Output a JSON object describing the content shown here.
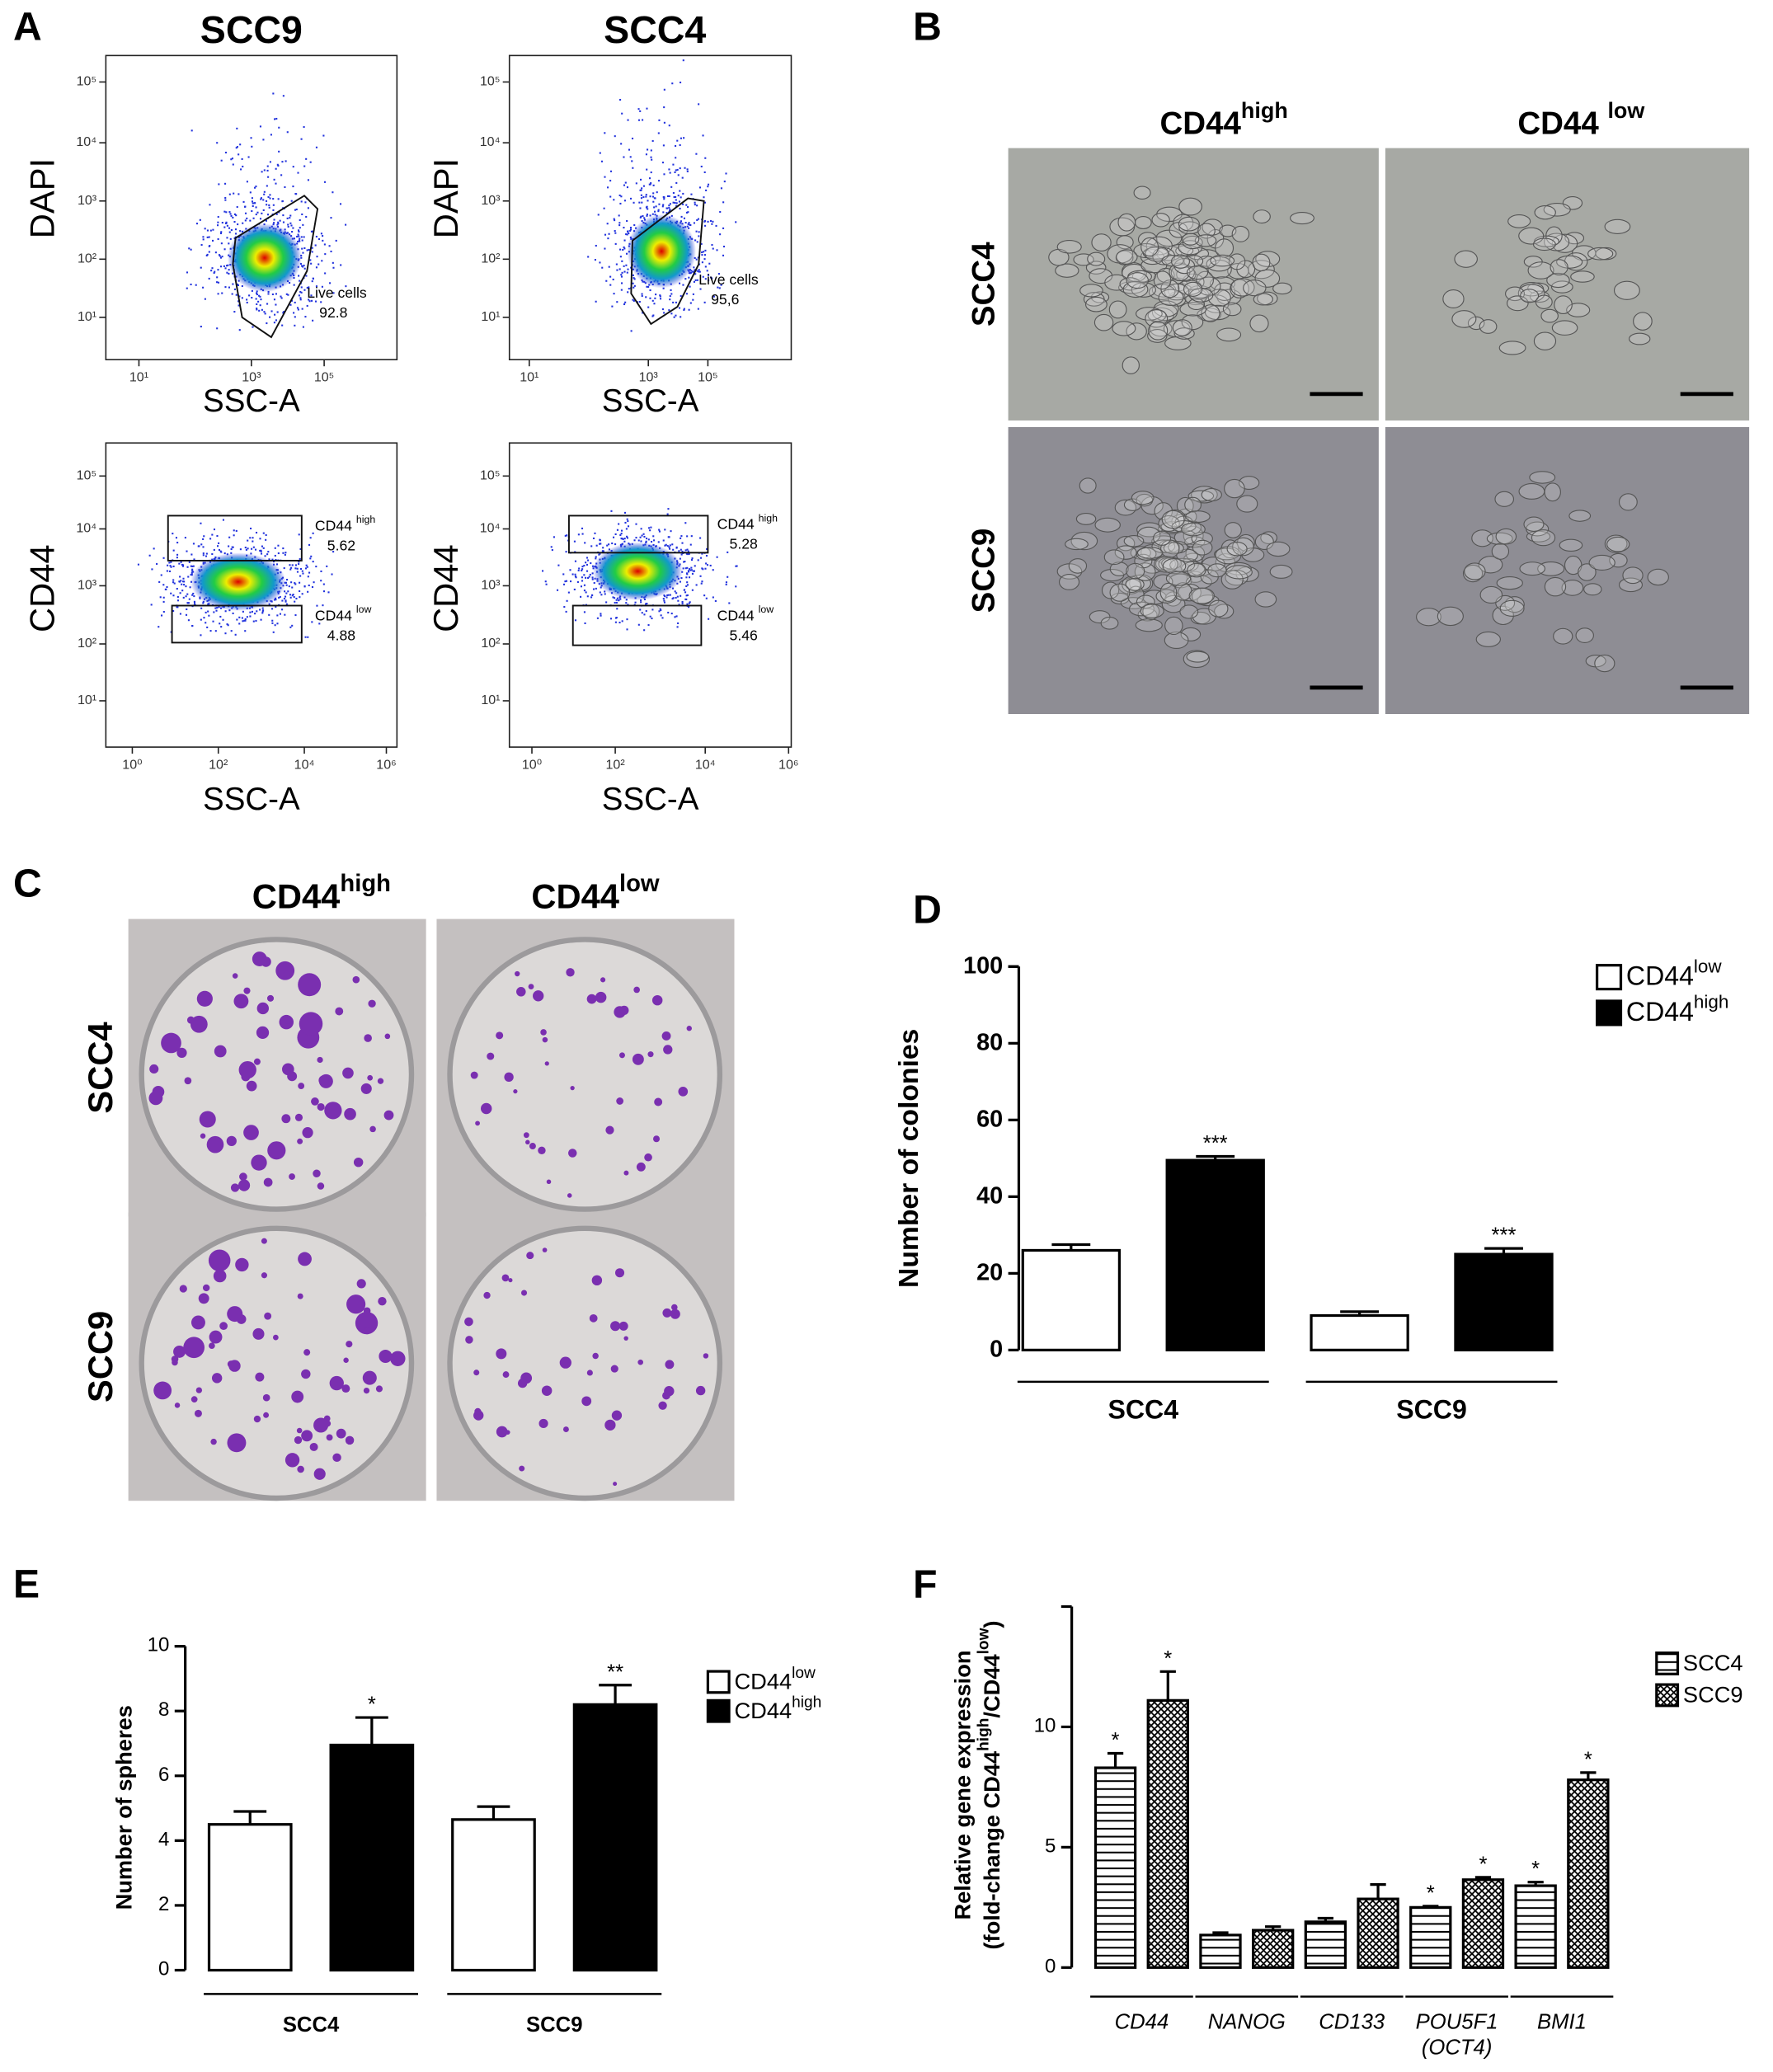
{
  "panels": {
    "a": {
      "label": "A",
      "columns": [
        "SCC9",
        "SCC4"
      ],
      "plots": [
        {
          "y_label": "DAPI",
          "x_label": "SSC-A",
          "yticks": [
            "10¹",
            "10²",
            "10³",
            "10⁴",
            "10⁵"
          ],
          "xticks": [
            "10¹",
            "10³",
            "10⁵"
          ],
          "gates": [
            {
              "name": "Live cells",
              "value": "92.8"
            }
          ]
        },
        {
          "y_label": "DAPI",
          "x_label": "SSC-A",
          "yticks": [
            "10¹",
            "10²",
            "10³",
            "10⁴",
            "10⁵"
          ],
          "xticks": [
            "10¹",
            "10³",
            "10⁵"
          ],
          "gates": [
            {
              "name": "Live cells",
              "value": "95,6"
            }
          ]
        },
        {
          "y_label": "CD44",
          "x_label": "SSC-A",
          "yticks": [
            "10¹",
            "10²",
            "10³",
            "10⁴",
            "10⁵"
          ],
          "xticks": [
            "10⁰",
            "10²",
            "10⁴",
            "10⁶"
          ],
          "gates": [
            {
              "name": "CD44 high",
              "value": "5.62"
            },
            {
              "name": "CD44 low",
              "value": "4.88"
            }
          ]
        },
        {
          "y_label": "CD44",
          "x_label": "SSC-A",
          "yticks": [
            "10¹",
            "10²",
            "10³",
            "10⁴",
            "10⁵"
          ],
          "xticks": [
            "10⁰",
            "10²",
            "10⁴",
            "10⁶"
          ],
          "gates": [
            {
              "name": "CD44 high",
              "value": "5.28"
            },
            {
              "name": "CD44 low",
              "value": "5.46"
            }
          ]
        }
      ]
    },
    "b": {
      "label": "B",
      "columns": [
        "CD44high",
        "CD44 low"
      ],
      "rows": [
        "SCC4",
        "SCC9"
      ]
    },
    "c": {
      "label": "C",
      "columns": [
        "CD44high",
        "CD44low"
      ],
      "rows": [
        "SCC4",
        "SCC9"
      ]
    }
  },
  "chart_data": [
    {
      "type": "bar",
      "panel_label": "D",
      "y_label": [
        "Number of colonies"
      ],
      "categories": [
        "SCC4",
        "SCC9"
      ],
      "series": [
        {
          "name": "CD44low",
          "color": "#ffffff",
          "values": [
            26,
            9
          ],
          "errors": [
            1.5,
            1
          ]
        },
        {
          "name": "CD44high",
          "color": "#000000",
          "values": [
            49.5,
            25
          ],
          "errors": [
            1,
            1.5
          ],
          "annotations": [
            "***",
            "***"
          ]
        }
      ],
      "ylim": [
        0,
        100
      ],
      "yticks": [
        0,
        20,
        40,
        60,
        80,
        100
      ],
      "legend": "upper right"
    },
    {
      "type": "bar",
      "panel_label": "E",
      "y_label": [
        "Number of spheres"
      ],
      "categories": [
        "SCC4",
        "SCC9"
      ],
      "series": [
        {
          "name": "CD44low",
          "color": "#ffffff",
          "values": [
            4.5,
            4.65
          ],
          "errors": [
            0.4,
            0.4
          ]
        },
        {
          "name": "CD44high",
          "color": "#000000",
          "values": [
            6.95,
            8.2
          ],
          "errors": [
            0.85,
            0.6
          ],
          "annotations": [
            "*",
            "**"
          ]
        }
      ],
      "ylim": [
        0,
        10
      ],
      "yticks": [
        0,
        2,
        4,
        6,
        8,
        10
      ],
      "legend": "upper right"
    },
    {
      "type": "bar",
      "panel_label": "F",
      "y_label": [
        "Relative gene expression",
        "(fold-change CD44high/CD44low)"
      ],
      "categories": [
        "CD44",
        "NANOG",
        "CD133",
        "POU5F1 (OCT4)",
        "BMI1"
      ],
      "series": [
        {
          "name": "SCC4",
          "color": "#ffffff",
          "pattern": "horizontal-lines",
          "values": [
            8.3,
            1.35,
            1.9,
            2.5,
            3.4
          ],
          "errors": [
            0.6,
            0.1,
            0.15,
            0.05,
            0.15
          ],
          "annotations": [
            "*",
            null,
            null,
            "*",
            "*"
          ]
        },
        {
          "name": "SCC9",
          "color": "#ffffff",
          "pattern": "crosshatch",
          "values": [
            11.1,
            1.55,
            2.85,
            3.65,
            7.8
          ],
          "errors": [
            1.2,
            0.15,
            0.6,
            0.1,
            0.3
          ],
          "annotations": [
            "*",
            null,
            null,
            "*",
            "*"
          ]
        }
      ],
      "ylim": [
        0,
        15
      ],
      "yticks": [
        0,
        5,
        10
      ],
      "legend": "upper right"
    }
  ]
}
